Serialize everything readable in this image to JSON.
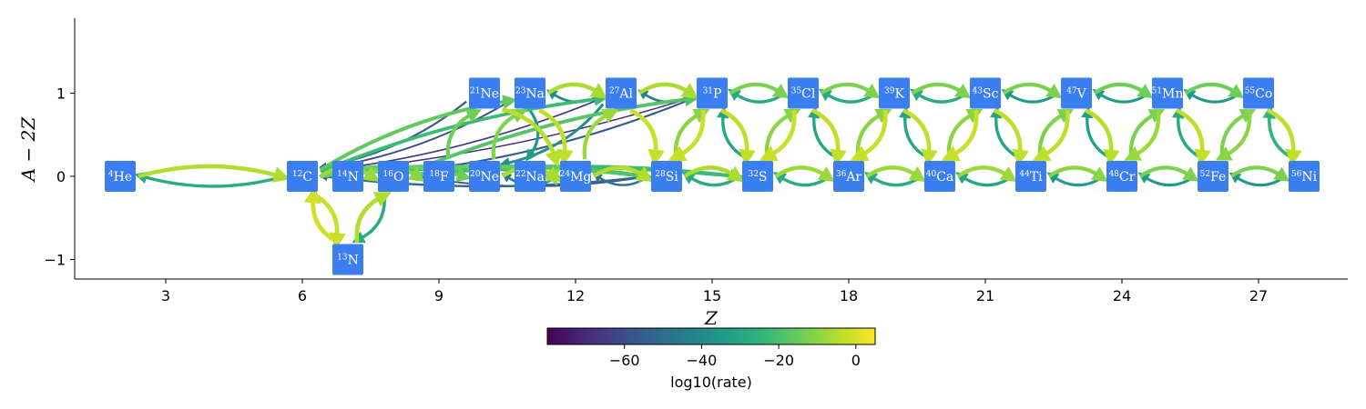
{
  "chart_data": {
    "type": "network",
    "xlabel": "Z",
    "ylabel": "A − 2Z",
    "x_ticks": [
      3,
      6,
      9,
      12,
      15,
      18,
      21,
      24,
      27
    ],
    "y_ticks": [
      1,
      0,
      -1
    ],
    "y_tick_labels": [
      "1",
      "0",
      "−1"
    ],
    "xlim": [
      1,
      29
    ],
    "ylim": [
      -1.25,
      1.85
    ],
    "node_color": "#3a7ef2",
    "nodes": [
      {
        "id": "he4",
        "mass": "4",
        "el": "He",
        "z": 2,
        "n": 0
      },
      {
        "id": "c12",
        "mass": "12",
        "el": "C",
        "z": 6,
        "n": 0
      },
      {
        "id": "n13",
        "mass": "13",
        "el": "N",
        "z": 7,
        "n": -1
      },
      {
        "id": "n14",
        "mass": "14",
        "el": "N",
        "z": 7,
        "n": 0
      },
      {
        "id": "o16",
        "mass": "16",
        "el": "O",
        "z": 8,
        "n": 0
      },
      {
        "id": "f18",
        "mass": "18",
        "el": "F",
        "z": 9,
        "n": 0
      },
      {
        "id": "ne20",
        "mass": "20",
        "el": "Ne",
        "z": 10,
        "n": 0
      },
      {
        "id": "ne21",
        "mass": "21",
        "el": "Ne",
        "z": 10,
        "n": 1
      },
      {
        "id": "na22",
        "mass": "22",
        "el": "Na",
        "z": 11,
        "n": 0
      },
      {
        "id": "na23",
        "mass": "23",
        "el": "Na",
        "z": 11,
        "n": 1
      },
      {
        "id": "mg24",
        "mass": "24",
        "el": "Mg",
        "z": 12,
        "n": 0
      },
      {
        "id": "al27",
        "mass": "27",
        "el": "Al",
        "z": 13,
        "n": 1
      },
      {
        "id": "si28",
        "mass": "28",
        "el": "Si",
        "z": 14,
        "n": 0
      },
      {
        "id": "p31",
        "mass": "31",
        "el": "P",
        "z": 15,
        "n": 1
      },
      {
        "id": "s32",
        "mass": "32",
        "el": "S",
        "z": 16,
        "n": 0
      },
      {
        "id": "cl35",
        "mass": "35",
        "el": "Cl",
        "z": 17,
        "n": 1
      },
      {
        "id": "ar36",
        "mass": "36",
        "el": "Ar",
        "z": 18,
        "n": 0
      },
      {
        "id": "k39",
        "mass": "39",
        "el": "K",
        "z": 19,
        "n": 1
      },
      {
        "id": "ca40",
        "mass": "40",
        "el": "Ca",
        "z": 20,
        "n": 0
      },
      {
        "id": "sc43",
        "mass": "43",
        "el": "Sc",
        "z": 21,
        "n": 1
      },
      {
        "id": "ti44",
        "mass": "44",
        "el": "Ti",
        "z": 22,
        "n": 0
      },
      {
        "id": "v47",
        "mass": "47",
        "el": "V",
        "z": 23,
        "n": 1
      },
      {
        "id": "cr48",
        "mass": "48",
        "el": "Cr",
        "z": 24,
        "n": 0
      },
      {
        "id": "mn51",
        "mass": "51",
        "el": "Mn",
        "z": 25,
        "n": 1
      },
      {
        "id": "fe52",
        "mass": "52",
        "el": "Fe",
        "z": 26,
        "n": 0
      },
      {
        "id": "co55",
        "mass": "55",
        "el": "Co",
        "z": 27,
        "n": 1
      },
      {
        "id": "ni56",
        "mass": "56",
        "el": "Ni",
        "z": 28,
        "n": 0
      }
    ],
    "links": [
      {
        "from": "he4",
        "to": "c12",
        "rate": -5
      },
      {
        "from": "c12",
        "to": "he4",
        "rate": -28
      },
      {
        "from": "c12",
        "to": "n13",
        "rate": -2
      },
      {
        "from": "n13",
        "to": "c12",
        "rate": -1
      },
      {
        "from": "n13",
        "to": "o16",
        "rate": -5
      },
      {
        "from": "o16",
        "to": "n13",
        "rate": -28
      },
      {
        "from": "c12",
        "to": "o16",
        "rate": -8
      },
      {
        "from": "c12",
        "to": "ne20",
        "rate": -14
      },
      {
        "from": "c12",
        "to": "na23",
        "rate": -16
      },
      {
        "from": "c12",
        "to": "mg24",
        "rate": -20
      },
      {
        "from": "c12",
        "to": "si28",
        "rate": -18
      },
      {
        "from": "c12",
        "to": "al27",
        "rate": -22
      },
      {
        "from": "c12",
        "to": "s32",
        "rate": -24
      },
      {
        "from": "o16",
        "to": "mg24",
        "rate": -15
      },
      {
        "from": "o16",
        "to": "si28",
        "rate": -20
      },
      {
        "from": "o16",
        "to": "p31",
        "rate": -18
      },
      {
        "from": "o16",
        "to": "s32",
        "rate": -22
      },
      {
        "from": "n14",
        "to": "f18",
        "rate": -10
      },
      {
        "from": "f18",
        "to": "ne21",
        "rate": -14
      },
      {
        "from": "ne20",
        "to": "mg24",
        "rate": -6
      },
      {
        "from": "ne20",
        "to": "na23",
        "rate": -12
      },
      {
        "from": "ne21",
        "to": "mg24",
        "rate": -4
      },
      {
        "from": "na22",
        "to": "mg24",
        "rate": -8
      },
      {
        "from": "na23",
        "to": "mg24",
        "rate": -3
      },
      {
        "from": "na23",
        "to": "al27",
        "rate": -6
      },
      {
        "from": "mg24",
        "to": "al27",
        "rate": -8
      },
      {
        "from": "mg24",
        "to": "si28",
        "rate": -5
      },
      {
        "from": "al27",
        "to": "si28",
        "rate": -2
      },
      {
        "from": "al27",
        "to": "p31",
        "rate": -6
      },
      {
        "from": "ne21",
        "to": "c12",
        "rate": -55
      },
      {
        "from": "na23",
        "to": "c12",
        "rate": -60
      },
      {
        "from": "al27",
        "to": "c12",
        "rate": -65
      },
      {
        "from": "p31",
        "to": "c12",
        "rate": -70
      },
      {
        "from": "si28",
        "to": "c12",
        "rate": -50
      },
      {
        "from": "si28",
        "to": "o16",
        "rate": -62
      },
      {
        "from": "mg24",
        "to": "ne20",
        "rate": -45
      },
      {
        "from": "al27",
        "to": "na23",
        "rate": -40
      },
      {
        "from": "p31",
        "to": "al27",
        "rate": -42
      },
      {
        "from": "si28",
        "to": "mg24",
        "rate": -48
      },
      {
        "from": "p31",
        "to": "o16",
        "rate": -55
      },
      {
        "from": "na23",
        "to": "na22",
        "rate": -33
      },
      {
        "from": "al27",
        "to": "ne20",
        "rate": -38
      },
      {
        "from": "si28",
        "to": "s32",
        "rate": -6
      },
      {
        "from": "s32",
        "to": "si28",
        "rate": -28
      },
      {
        "from": "si28",
        "to": "p31",
        "rate": -10
      },
      {
        "from": "p31",
        "to": "si28",
        "rate": -2
      },
      {
        "from": "p31",
        "to": "s32",
        "rate": -3
      },
      {
        "from": "s32",
        "to": "p31",
        "rate": -30
      },
      {
        "from": "p31",
        "to": "cl35",
        "rate": -12
      },
      {
        "from": "cl35",
        "to": "p31",
        "rate": -28
      },
      {
        "from": "s32",
        "to": "ar36",
        "rate": -8
      },
      {
        "from": "ar36",
        "to": "s32",
        "rate": -28
      },
      {
        "from": "s32",
        "to": "cl35",
        "rate": -10
      },
      {
        "from": "cl35",
        "to": "s32",
        "rate": -2
      },
      {
        "from": "cl35",
        "to": "ar36",
        "rate": -3
      },
      {
        "from": "ar36",
        "to": "cl35",
        "rate": -30
      },
      {
        "from": "cl35",
        "to": "k39",
        "rate": -12
      },
      {
        "from": "k39",
        "to": "cl35",
        "rate": -28
      },
      {
        "from": "ar36",
        "to": "ca40",
        "rate": -8
      },
      {
        "from": "ca40",
        "to": "ar36",
        "rate": -28
      },
      {
        "from": "ar36",
        "to": "k39",
        "rate": -10
      },
      {
        "from": "k39",
        "to": "ar36",
        "rate": -2
      },
      {
        "from": "k39",
        "to": "ca40",
        "rate": -3
      },
      {
        "from": "ca40",
        "to": "k39",
        "rate": -30
      },
      {
        "from": "k39",
        "to": "sc43",
        "rate": -12
      },
      {
        "from": "sc43",
        "to": "k39",
        "rate": -28
      },
      {
        "from": "ca40",
        "to": "ti44",
        "rate": -8
      },
      {
        "from": "ti44",
        "to": "ca40",
        "rate": -30
      },
      {
        "from": "ca40",
        "to": "sc43",
        "rate": -10
      },
      {
        "from": "sc43",
        "to": "ca40",
        "rate": -2
      },
      {
        "from": "sc43",
        "to": "ti44",
        "rate": -3
      },
      {
        "from": "ti44",
        "to": "sc43",
        "rate": -30
      },
      {
        "from": "sc43",
        "to": "v47",
        "rate": -12
      },
      {
        "from": "v47",
        "to": "sc43",
        "rate": -34
      },
      {
        "from": "ti44",
        "to": "cr48",
        "rate": -10
      },
      {
        "from": "cr48",
        "to": "ti44",
        "rate": -34
      },
      {
        "from": "ti44",
        "to": "v47",
        "rate": -12
      },
      {
        "from": "v47",
        "to": "ti44",
        "rate": -3
      },
      {
        "from": "v47",
        "to": "cr48",
        "rate": -4
      },
      {
        "from": "cr48",
        "to": "v47",
        "rate": -32
      },
      {
        "from": "v47",
        "to": "mn51",
        "rate": -14
      },
      {
        "from": "mn51",
        "to": "v47",
        "rate": -34
      },
      {
        "from": "cr48",
        "to": "fe52",
        "rate": -12
      },
      {
        "from": "fe52",
        "to": "cr48",
        "rate": -34
      },
      {
        "from": "cr48",
        "to": "mn51",
        "rate": -12
      },
      {
        "from": "mn51",
        "to": "cr48",
        "rate": -8
      },
      {
        "from": "mn51",
        "to": "fe52",
        "rate": -3
      },
      {
        "from": "fe52",
        "to": "mn51",
        "rate": -28
      },
      {
        "from": "mn51",
        "to": "co55",
        "rate": -14
      },
      {
        "from": "co55",
        "to": "mn51",
        "rate": -34
      },
      {
        "from": "fe52",
        "to": "ni56",
        "rate": -12
      },
      {
        "from": "ni56",
        "to": "fe52",
        "rate": -36
      },
      {
        "from": "fe52",
        "to": "co55",
        "rate": -12
      },
      {
        "from": "co55",
        "to": "fe52",
        "rate": -10
      },
      {
        "from": "co55",
        "to": "ni56",
        "rate": -3
      },
      {
        "from": "ni56",
        "to": "co55",
        "rate": -24
      }
    ],
    "colorbar": {
      "label": "log10(rate)",
      "min": -80,
      "max": 5,
      "ticks": [
        -60,
        -40,
        -20,
        0
      ],
      "tick_labels": [
        "−60",
        "−40",
        "−20",
        "0"
      ],
      "colormap": "viridis"
    }
  }
}
